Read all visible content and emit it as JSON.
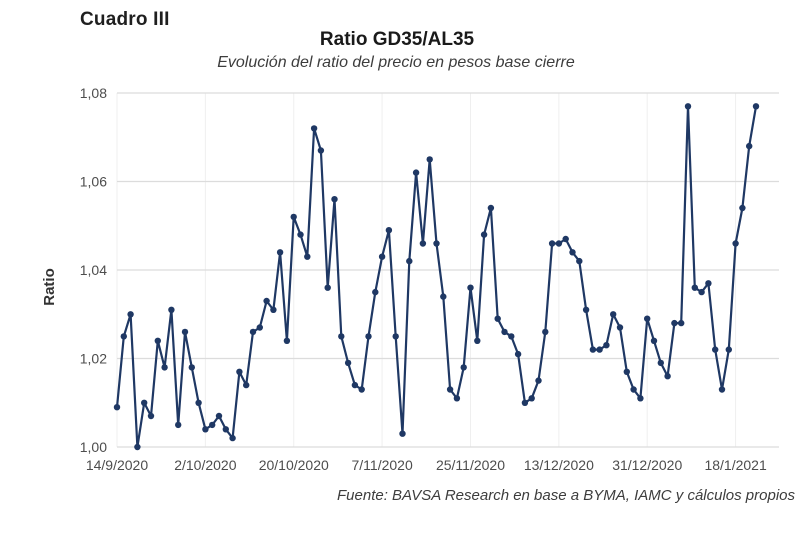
{
  "header": {
    "cuadro_label": "Cuadro III"
  },
  "footer": {
    "source": "Fuente: BAVSA Research en base a BYMA, IAMC y cálculos propios"
  },
  "chart_data": {
    "type": "line",
    "title": "Ratio GD35/AL35",
    "subtitle": "Evolución del ratio del precio en pesos base cierre",
    "xlabel": "",
    "ylabel": "Ratio",
    "ylim": [
      1.0,
      1.08
    ],
    "grid": "horizontal-light-plus-faint-vertical-at-ticks",
    "legend": "none",
    "colors": {
      "line": "#1F3864",
      "marker": "#1F3864",
      "grid_horizontal": "#DCDCDC",
      "grid_vertical": "#EFEFEF",
      "axis_text": "#4D4D4D"
    },
    "yticks": {
      "values": [
        1.0,
        1.02,
        1.04,
        1.06,
        1.08
      ],
      "labels": [
        "1,00",
        "1,02",
        "1,04",
        "1,06",
        "1,08"
      ]
    },
    "xticks": {
      "indices": [
        0,
        13,
        26,
        39,
        52,
        65,
        78,
        91
      ],
      "labels": [
        "14/9/2020",
        "2/10/2020",
        "20/10/2020",
        "7/11/2020",
        "25/11/2020",
        "13/12/2020",
        "31/12/2020",
        "18/1/2021"
      ]
    },
    "series": [
      {
        "name": "Ratio GD35/AL35",
        "color": "#1F3864",
        "marker": "circle",
        "values": [
          1.009,
          1.025,
          1.03,
          1.0,
          1.01,
          1.007,
          1.024,
          1.018,
          1.031,
          1.005,
          1.026,
          1.018,
          1.01,
          1.004,
          1.005,
          1.007,
          1.004,
          1.002,
          1.017,
          1.014,
          1.026,
          1.027,
          1.033,
          1.031,
          1.044,
          1.024,
          1.052,
          1.048,
          1.043,
          1.072,
          1.067,
          1.036,
          1.056,
          1.025,
          1.019,
          1.014,
          1.013,
          1.025,
          1.035,
          1.043,
          1.049,
          1.025,
          1.003,
          1.042,
          1.062,
          1.046,
          1.065,
          1.046,
          1.034,
          1.013,
          1.011,
          1.018,
          1.036,
          1.024,
          1.048,
          1.054,
          1.029,
          1.026,
          1.025,
          1.021,
          1.01,
          1.011,
          1.015,
          1.026,
          1.046,
          1.046,
          1.047,
          1.044,
          1.042,
          1.031,
          1.022,
          1.022,
          1.023,
          1.03,
          1.027,
          1.017,
          1.013,
          1.011,
          1.029,
          1.024,
          1.019,
          1.016,
          1.028,
          1.028,
          1.077,
          1.036,
          1.035,
          1.037,
          1.022,
          1.013,
          1.022,
          1.046,
          1.054,
          1.068,
          1.077
        ]
      }
    ]
  }
}
